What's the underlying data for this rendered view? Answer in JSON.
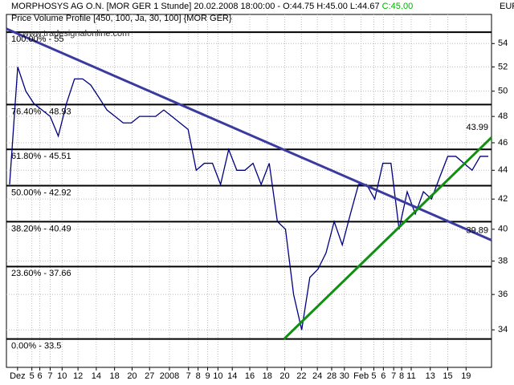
{
  "chart_data": {
    "type": "line",
    "title": "MORPHOSYS AG O.N. [MOR GER  1 Stunde] 20.02.2008 18:00:00 - O:44.75 H:45.00 L:44.67",
    "title_close": "C:45.00",
    "title_close_color": "#00b000",
    "subtitle": "Price Volume Profile [450, 100, Ja, 30, 100] {MOR GER}",
    "watermark": "www.tradesignalonline.com",
    "y_unit": "EUR",
    "log_scale": true,
    "grid": true,
    "xlim": [
      -0.4,
      60.6
    ],
    "ylim": [
      32,
      56.6
    ],
    "yticks": [
      34,
      36,
      38,
      40,
      42,
      44,
      46,
      48,
      50,
      52,
      54
    ],
    "xticks": [
      {
        "value": 1.0,
        "label": "Dez"
      },
      {
        "value": 2.8,
        "label": "5"
      },
      {
        "value": 3.8,
        "label": "6"
      },
      {
        "value": 5.1,
        "label": "7"
      },
      {
        "value": 6.6,
        "label": "10"
      },
      {
        "value": 8.6,
        "label": "12"
      },
      {
        "value": 10.9,
        "label": "14"
      },
      {
        "value": 13.2,
        "label": "18"
      },
      {
        "value": 15.4,
        "label": "20"
      },
      {
        "value": 17.6,
        "label": "27"
      },
      {
        "value": 20.1,
        "label": "2008"
      },
      {
        "value": 22.5,
        "label": "7"
      },
      {
        "value": 23.7,
        "label": "8"
      },
      {
        "value": 24.9,
        "label": "9"
      },
      {
        "value": 26.2,
        "label": "10"
      },
      {
        "value": 28.0,
        "label": "14"
      },
      {
        "value": 30.2,
        "label": "16"
      },
      {
        "value": 32.4,
        "label": "18"
      },
      {
        "value": 34.6,
        "label": "20"
      },
      {
        "value": 36.7,
        "label": "22"
      },
      {
        "value": 38.7,
        "label": "24"
      },
      {
        "value": 40.5,
        "label": "28"
      },
      {
        "value": 42.1,
        "label": "30"
      },
      {
        "value": 44.2,
        "label": "Feb"
      },
      {
        "value": 45.8,
        "label": "5"
      },
      {
        "value": 47.0,
        "label": "6"
      },
      {
        "value": 48.3,
        "label": "7"
      },
      {
        "value": 49.3,
        "label": "8"
      },
      {
        "value": 50.5,
        "label": "11"
      },
      {
        "value": 52.9,
        "label": "13"
      },
      {
        "value": 55.1,
        "label": "15"
      },
      {
        "value": 57.4,
        "label": "19"
      }
    ],
    "series": [
      {
        "name": "MORPHOSYS AG O.N.",
        "color": "#000080",
        "values": [
          43,
          52,
          50,
          49,
          48.5,
          48,
          46.5,
          49,
          51,
          51,
          50.5,
          49.5,
          48.5,
          48,
          47.5,
          47.5,
          48,
          48,
          48,
          48.5,
          48,
          47.5,
          47,
          44,
          44.5,
          44.5,
          43,
          45.5,
          44,
          44,
          44.5,
          43,
          44.5,
          40.5,
          40,
          36,
          34,
          37,
          37.5,
          38.5,
          40.5,
          39,
          41,
          43,
          43,
          42,
          44.5,
          44.5,
          40,
          42.5,
          41,
          42.5,
          42,
          43.5,
          45,
          45,
          44.5,
          44,
          45,
          45
        ]
      }
    ],
    "levels": [
      {
        "label": "100.00% - 55",
        "value": 55
      },
      {
        "label": "76.40% - 48.93",
        "value": 48.93
      },
      {
        "label": "61.80% - 45.51",
        "value": 45.51
      },
      {
        "label": "50.00% - 42.92",
        "value": 42.92
      },
      {
        "label": "38.20% - 40.49",
        "value": 40.49
      },
      {
        "label": "23.60% - 37.66",
        "value": 37.66
      },
      {
        "label": "0.00% - 33.5",
        "value": 33.5
      }
    ],
    "trendlines": [
      {
        "color": "#3a3aa0",
        "x": [
          -0.4,
          60.6
        ],
        "y": [
          55.3,
          39.3
        ],
        "label": "39.89"
      },
      {
        "color": "#109010",
        "x": [
          34.5,
          60.6
        ],
        "y": [
          33.5,
          46.4
        ],
        "label": "43.99"
      }
    ]
  }
}
